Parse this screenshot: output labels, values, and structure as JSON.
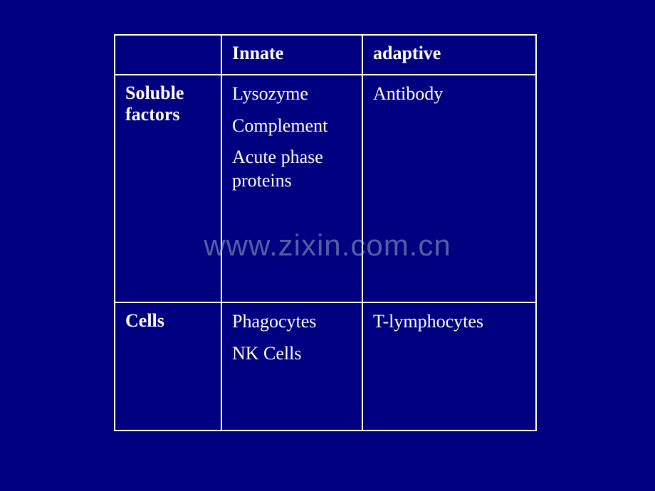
{
  "table": {
    "background_color": "#000080",
    "border_color": "#ffffff",
    "text_color": "#ffffff",
    "font_family": "Times New Roman",
    "font_size": 26,
    "columns": [
      {
        "key": "category",
        "header": ""
      },
      {
        "key": "innate",
        "header": "Innate"
      },
      {
        "key": "adaptive",
        "header": "adaptive"
      }
    ],
    "rows": [
      {
        "label": "Soluble factors",
        "innate": [
          "Lysozyme",
          "Complement",
          "Acute phase proteins"
        ],
        "adaptive": [
          "Antibody"
        ]
      },
      {
        "label": "Cells",
        "innate": [
          "Phagocytes",
          "NK Cells"
        ],
        "adaptive": [
          "T-lymphocytes"
        ]
      }
    ]
  },
  "watermark": {
    "text": "www.zixin.com.cn",
    "color": "rgba(175, 188, 200, 0.5)",
    "font_size": 42
  }
}
